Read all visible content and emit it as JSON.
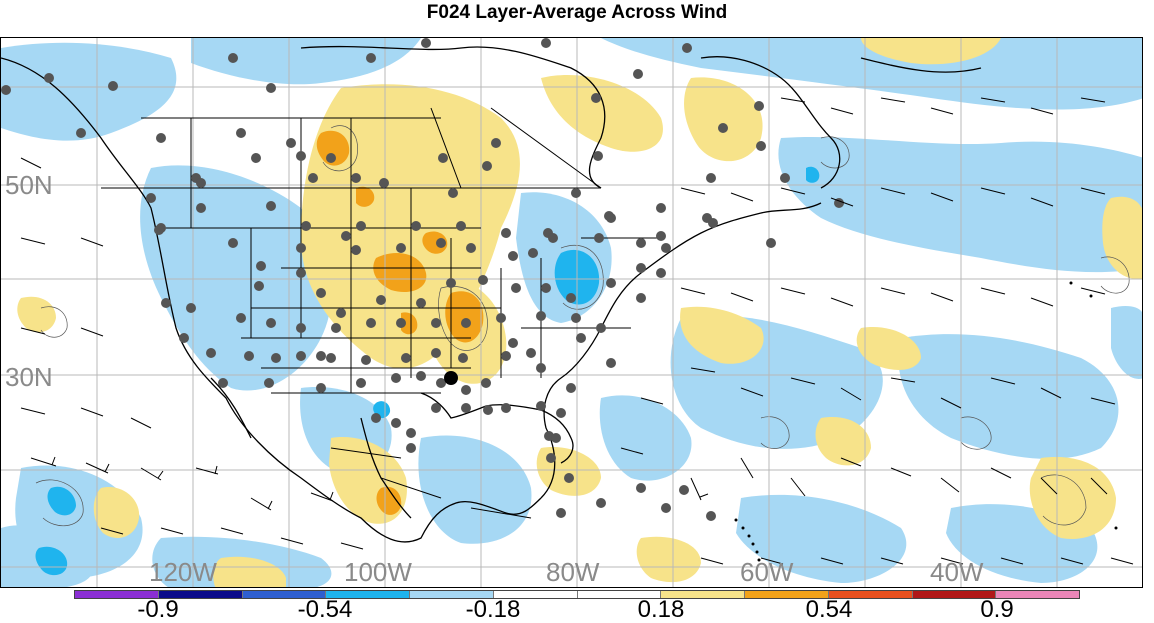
{
  "title": "F024 Layer-Average Across Wind",
  "map": {
    "lat_labels": [
      "50N",
      "30N"
    ],
    "lon_labels": [
      "120W",
      "100W",
      "80W",
      "60W",
      "40W"
    ]
  },
  "colorbar": {
    "colors": [
      "#8b2fd4",
      "#0c0c8a",
      "#2f5fd0",
      "#1fb4ee",
      "#a6d8f4",
      "#ffffff",
      "#ffffff",
      "#f7e38a",
      "#f2a21a",
      "#e8501e",
      "#b01818",
      "#ea86b8"
    ],
    "labels": [
      "-0.9",
      "-0.54",
      "-0.18",
      "0.18",
      "0.54",
      "0.9"
    ]
  },
  "legend_colors": {
    "positive_light": "#f7e38a",
    "positive_mid": "#f2a21a",
    "negative_light": "#a6d8f4",
    "negative_mid": "#1fb4ee",
    "station_dot": "#555555"
  }
}
